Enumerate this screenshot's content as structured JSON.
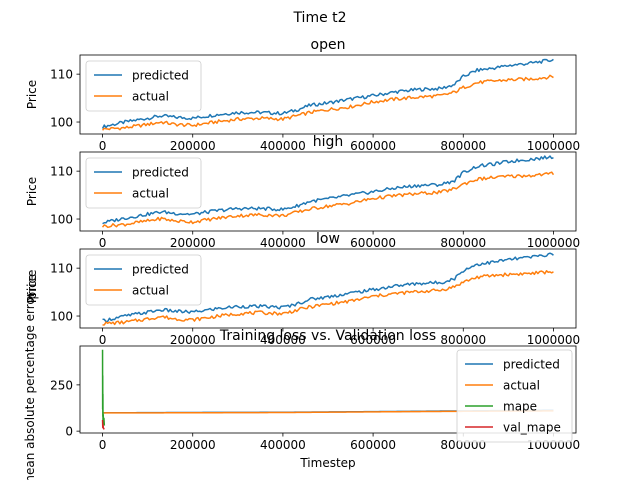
{
  "figure": {
    "suptitle": "Time t2"
  },
  "colors": {
    "predicted": "#1f77b4",
    "actual": "#ff7f0e",
    "mape": "#2ca02c",
    "val_mape": "#d62728"
  },
  "chart_data": [
    {
      "type": "line",
      "title": "open",
      "xlabel": "",
      "ylabel": "Price",
      "xlim": [
        -50000,
        1050000
      ],
      "ylim": [
        97.5,
        114.0
      ],
      "xticks": [
        0,
        200000,
        400000,
        600000,
        800000,
        1000000
      ],
      "xtick_labels": [
        "0",
        "200000",
        "400000",
        "600000",
        "800000",
        "1000000"
      ],
      "yticks": [
        100,
        110
      ],
      "ytick_labels": [
        "100",
        "110"
      ],
      "legend": "upper-left",
      "x": [
        0,
        50000,
        100000,
        130000,
        160000,
        200000,
        250000,
        300000,
        350000,
        400000,
        430000,
        460000,
        500000,
        550000,
        600000,
        650000,
        700000,
        750000,
        780000,
        800000,
        830000,
        870000,
        900000,
        950000,
        1000000
      ],
      "series": [
        {
          "name": "predicted",
          "values": [
            99.0,
            100.0,
            100.8,
            101.3,
            101.0,
            100.8,
            101.5,
            102.0,
            102.0,
            101.8,
            102.5,
            103.5,
            104.0,
            104.8,
            105.5,
            106.3,
            106.8,
            107.0,
            107.8,
            109.5,
            110.8,
            111.3,
            111.8,
            112.3,
            113.0
          ]
        },
        {
          "name": "actual",
          "values": [
            98.5,
            98.8,
            99.5,
            100.0,
            99.5,
            99.3,
            100.0,
            100.6,
            100.8,
            100.6,
            101.3,
            102.0,
            102.6,
            103.2,
            104.2,
            104.8,
            105.2,
            105.5,
            106.2,
            107.2,
            108.2,
            108.6,
            108.8,
            109.0,
            109.5
          ]
        }
      ]
    },
    {
      "type": "line",
      "title": "high",
      "xlabel": "",
      "ylabel": "Price",
      "xlim": [
        -50000,
        1050000
      ],
      "ylim": [
        97.5,
        114.0
      ],
      "xticks": [
        0,
        200000,
        400000,
        600000,
        800000,
        1000000
      ],
      "xtick_labels": [
        "0",
        "200000",
        "400000",
        "600000",
        "800000",
        "1000000"
      ],
      "yticks": [
        100,
        110
      ],
      "ytick_labels": [
        "100",
        "110"
      ],
      "legend": "upper-left",
      "x": [
        0,
        50000,
        100000,
        130000,
        160000,
        200000,
        250000,
        300000,
        350000,
        400000,
        430000,
        460000,
        500000,
        550000,
        600000,
        650000,
        700000,
        750000,
        780000,
        800000,
        830000,
        870000,
        900000,
        950000,
        1000000
      ],
      "series": [
        {
          "name": "predicted",
          "values": [
            99.2,
            100.2,
            101.0,
            101.5,
            101.2,
            101.0,
            101.7,
            102.2,
            102.2,
            102.0,
            102.7,
            103.7,
            104.2,
            105.0,
            105.7,
            106.5,
            107.0,
            107.2,
            108.0,
            109.7,
            111.0,
            111.5,
            112.0,
            112.5,
            113.0
          ]
        },
        {
          "name": "actual",
          "values": [
            98.5,
            98.9,
            99.6,
            100.1,
            99.6,
            99.4,
            100.1,
            100.7,
            100.9,
            100.7,
            101.4,
            102.1,
            102.7,
            103.3,
            104.3,
            104.9,
            105.3,
            105.6,
            106.3,
            107.3,
            108.3,
            108.7,
            108.9,
            109.1,
            109.5
          ]
        }
      ]
    },
    {
      "type": "line",
      "title": "low",
      "xlabel": "",
      "ylabel": "Price",
      "ylabel_overlap": "price",
      "xlim": [
        -50000,
        1050000
      ],
      "ylim": [
        97.5,
        114.0
      ],
      "xticks": [
        0,
        200000,
        400000,
        600000,
        800000,
        1000000
      ],
      "xtick_labels": [
        "0",
        "200000",
        "400000",
        "600000",
        "800000",
        "1000000"
      ],
      "yticks": [
        100,
        110
      ],
      "ytick_labels": [
        "100",
        "110"
      ],
      "legend": "upper-left",
      "x": [
        0,
        50000,
        100000,
        130000,
        160000,
        200000,
        250000,
        300000,
        350000,
        400000,
        430000,
        460000,
        500000,
        550000,
        600000,
        650000,
        700000,
        750000,
        780000,
        800000,
        830000,
        870000,
        900000,
        950000,
        1000000
      ],
      "series": [
        {
          "name": "predicted",
          "values": [
            99.0,
            100.0,
            100.8,
            101.3,
            101.0,
            100.8,
            101.5,
            102.0,
            102.0,
            101.8,
            102.5,
            103.5,
            104.0,
            104.8,
            105.5,
            106.3,
            106.8,
            107.0,
            107.8,
            109.5,
            110.8,
            111.3,
            111.8,
            112.3,
            113.0
          ]
        },
        {
          "name": "actual",
          "values": [
            98.4,
            98.7,
            99.4,
            99.9,
            99.4,
            99.2,
            99.9,
            100.5,
            100.7,
            100.5,
            101.2,
            101.9,
            102.5,
            103.1,
            104.1,
            104.7,
            105.1,
            105.4,
            106.1,
            107.1,
            108.1,
            108.5,
            108.7,
            108.9,
            109.3
          ]
        }
      ]
    },
    {
      "type": "line",
      "title": "Training loss vs. Validation loss",
      "xlabel": "Timestep",
      "ylabel": "mean absolute percentage error",
      "xlim": [
        -50000,
        1050000
      ],
      "ylim": [
        -10,
        460
      ],
      "xticks": [
        0,
        200000,
        400000,
        600000,
        800000,
        1000000
      ],
      "xtick_labels": [
        "0",
        "200000",
        "400000",
        "600000",
        "800000",
        "1000000"
      ],
      "yticks": [
        0,
        250
      ],
      "ytick_labels": [
        "0",
        "250"
      ],
      "legend": "upper-right",
      "series": [
        {
          "name": "predicted",
          "x": [
            0,
            200000,
            400000,
            600000,
            800000,
            1000000
          ],
          "values": [
            99.0,
            101.0,
            102.0,
            105.5,
            109.5,
            113.0
          ]
        },
        {
          "name": "actual",
          "x": [
            0,
            200000,
            400000,
            600000,
            800000,
            1000000
          ],
          "values": [
            98.5,
            99.3,
            100.6,
            104.2,
            107.2,
            109.5
          ]
        },
        {
          "name": "mape",
          "x": [
            0,
            200,
            400,
            600,
            800,
            1000,
            1500,
            2000,
            3000,
            4000
          ],
          "values": [
            440,
            120,
            300,
            80,
            200,
            60,
            90,
            40,
            70,
            30
          ]
        },
        {
          "name": "val_mape",
          "x": [
            0,
            500,
            1000,
            2000,
            4000
          ],
          "values": [
            60,
            20,
            35,
            15,
            10
          ]
        }
      ]
    }
  ]
}
